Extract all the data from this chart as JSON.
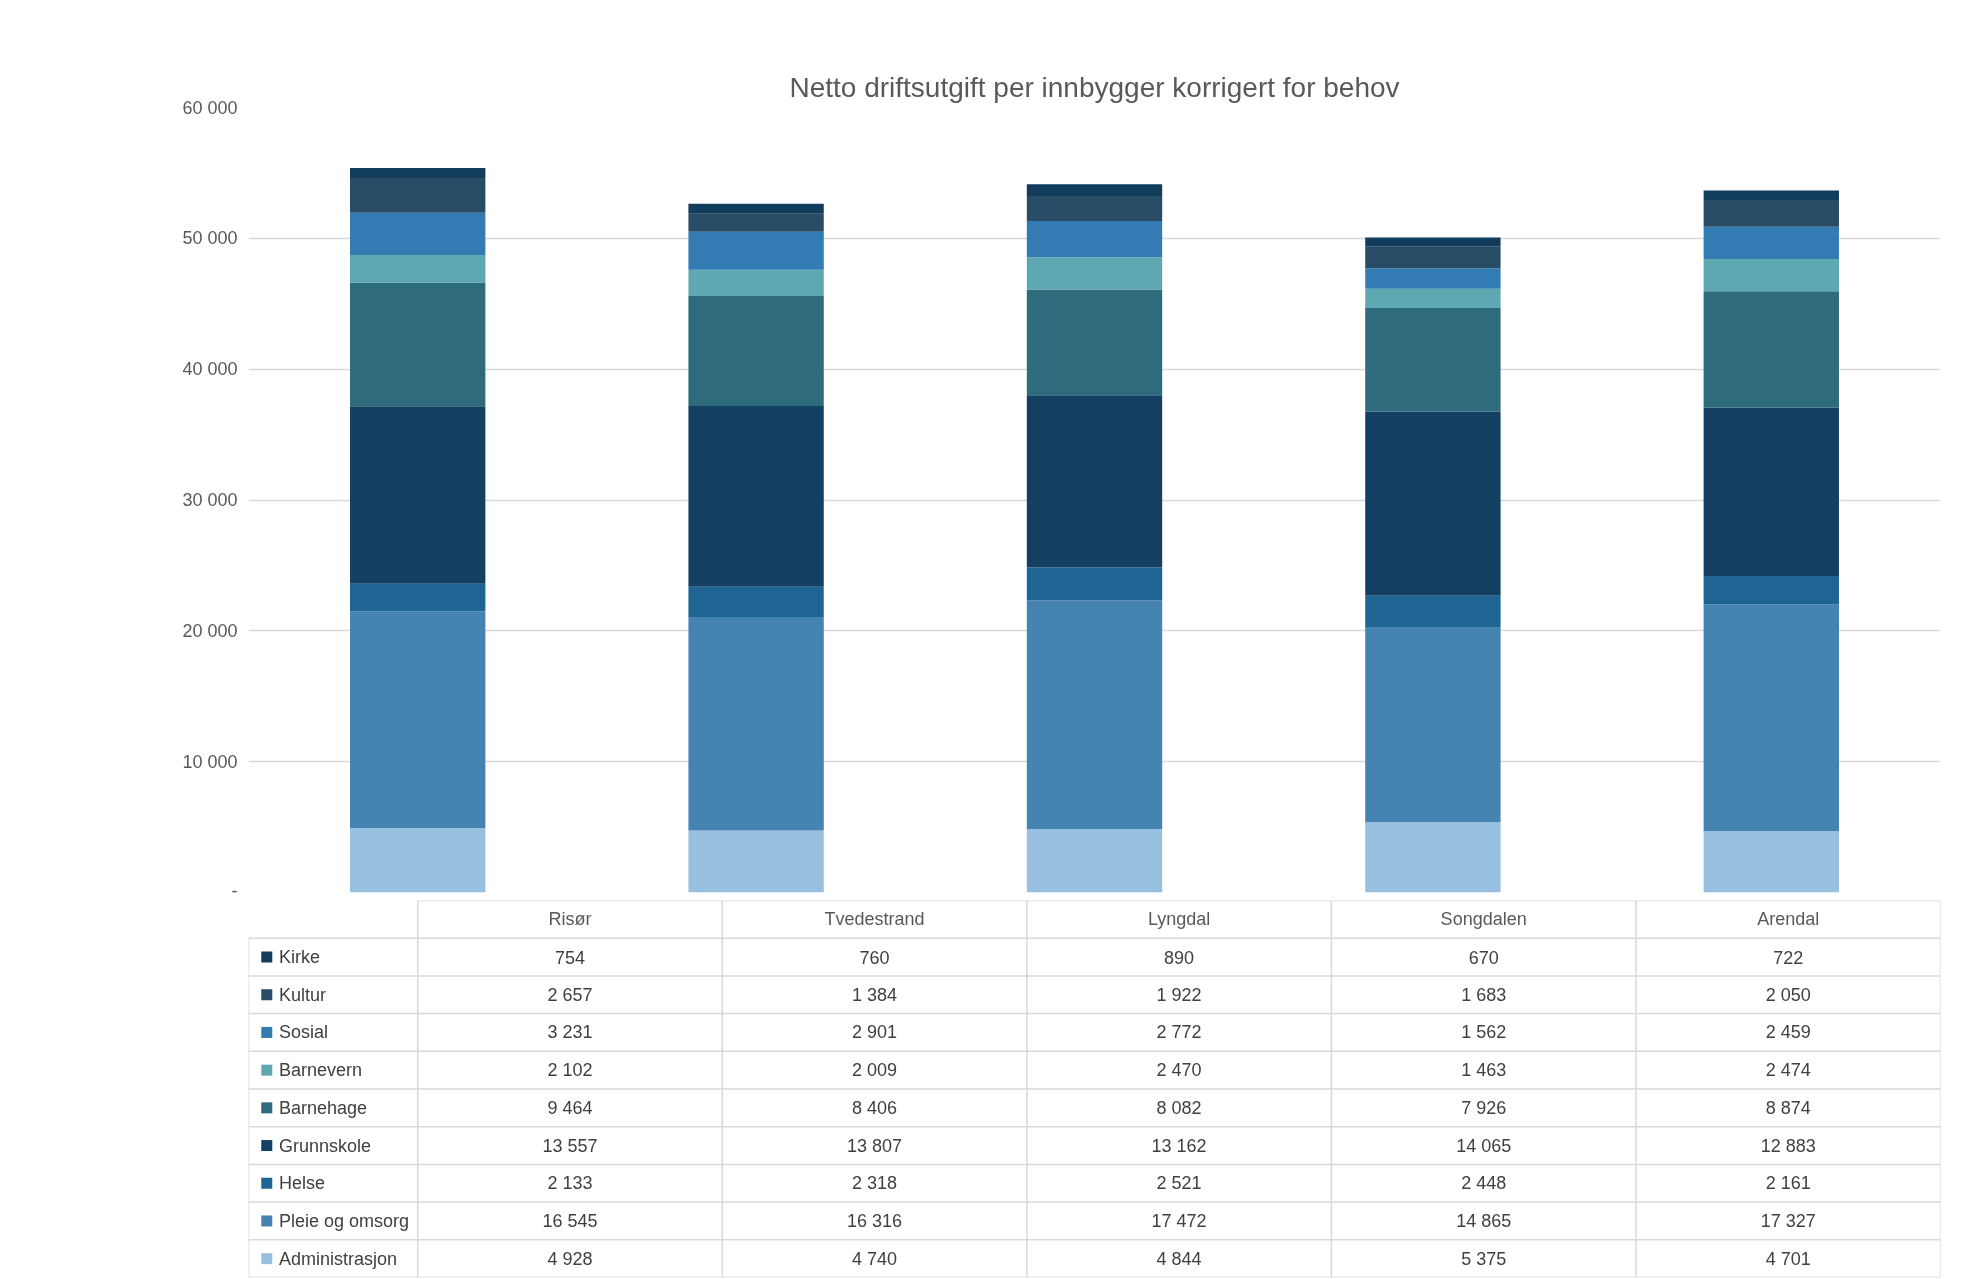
{
  "chart_data": {
    "type": "bar",
    "title": "Netto driftsutgift per innbygger korrigert for behov",
    "categories": [
      "Risør",
      "Tvedestrand",
      "Lyngdal",
      "Songdalen",
      "Arendal"
    ],
    "stacked": true,
    "data_labels": true,
    "legend": "bottom",
    "grid": "y",
    "ylim": [
      0,
      60000
    ],
    "yticks": [
      {
        "value": 0,
        "label": "-"
      },
      {
        "value": 10000,
        "label": "10 000"
      },
      {
        "value": 20000,
        "label": "20 000"
      },
      {
        "value": 30000,
        "label": "30 000"
      },
      {
        "value": 40000,
        "label": "40 000"
      },
      {
        "value": 50000,
        "label": "50 000"
      },
      {
        "value": 60000,
        "label": "60 000"
      }
    ],
    "series": [
      {
        "name": "Administrasjon",
        "color": "#97c0e0",
        "values": [
          4928,
          4740,
          4844,
          5375,
          4701
        ]
      },
      {
        "name": "Pleie og omsorg",
        "color": "#4583b0",
        "values": [
          16545,
          16316,
          17472,
          14865,
          17327
        ]
      },
      {
        "name": "Helse",
        "color": "#1f6593",
        "values": [
          2133,
          2318,
          2521,
          2448,
          2161
        ]
      },
      {
        "name": "Grunnskole",
        "color": "#134062",
        "values": [
          13557,
          13807,
          13162,
          14065,
          12883
        ]
      },
      {
        "name": "Barnehage",
        "color": "#2e6b7c",
        "values": [
          9464,
          8406,
          8082,
          7926,
          8874
        ]
      },
      {
        "name": "Barnevern",
        "color": "#5ea8b2",
        "values": [
          2102,
          2009,
          2470,
          1463,
          2474
        ]
      },
      {
        "name": "Sosial",
        "color": "#337bb3",
        "values": [
          3231,
          2901,
          2772,
          1562,
          2459
        ]
      },
      {
        "name": "Kultur",
        "color": "#284c66",
        "values": [
          2657,
          1384,
          1922,
          1683,
          2050
        ]
      },
      {
        "name": "Kirke",
        "color": "#123c5c",
        "values": [
          754,
          760,
          890,
          670,
          722
        ]
      }
    ]
  }
}
